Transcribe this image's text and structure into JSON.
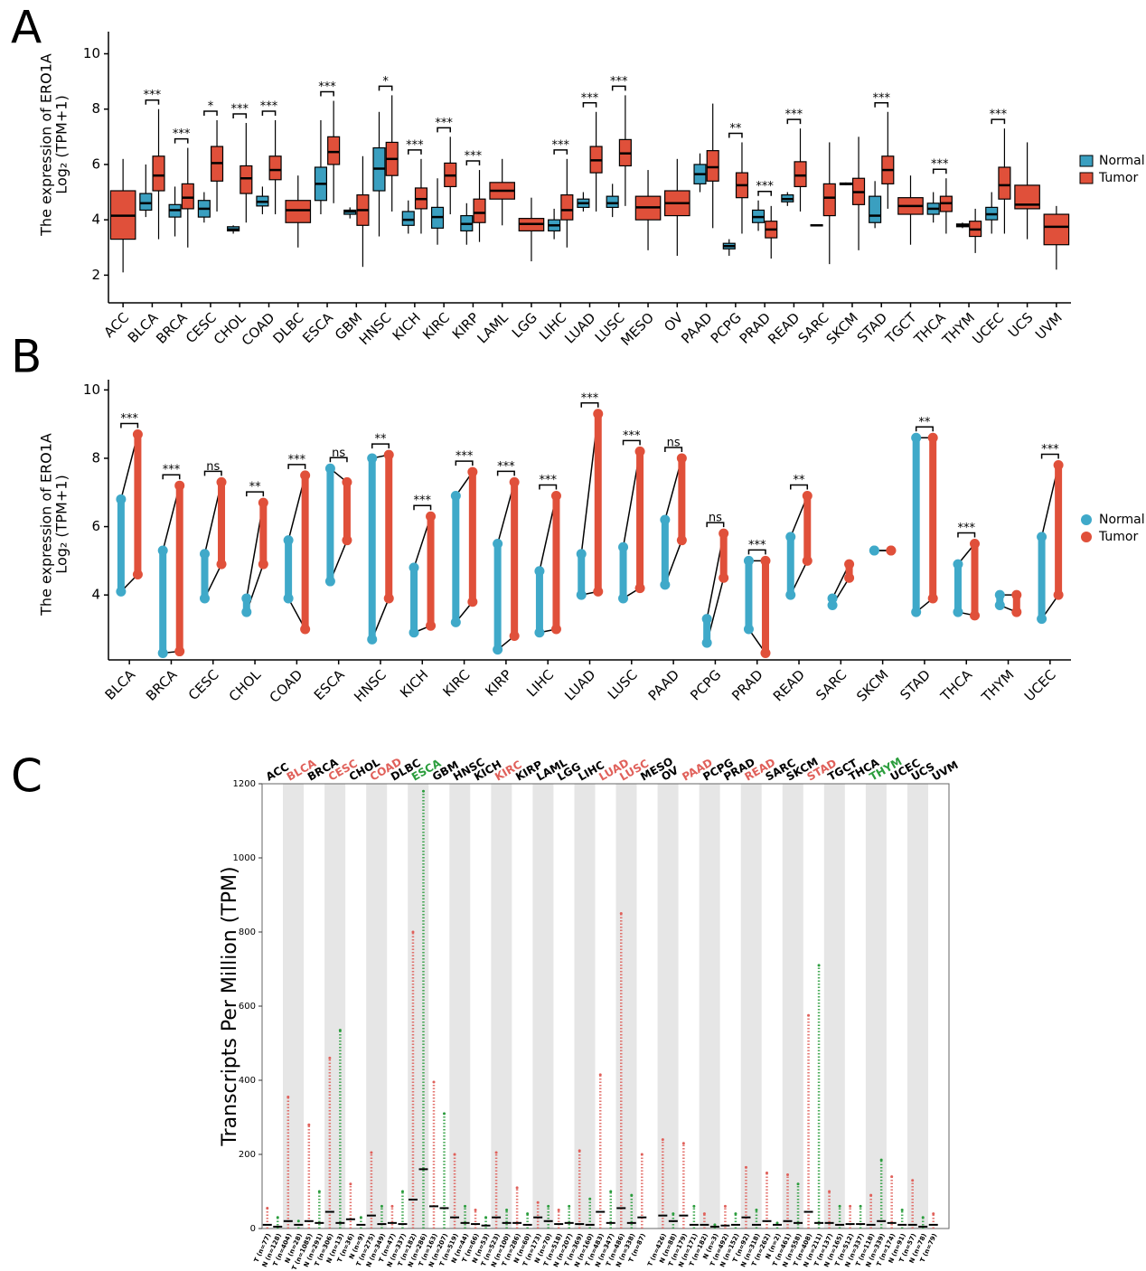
{
  "chart_data": [
    {
      "type": "boxplot",
      "panel_label": "A",
      "y_label": [
        "The expression of ERO1A",
        "Log₂ (TPM+1)"
      ],
      "categories": [
        "ACC",
        "BLCA",
        "BRCA",
        "CESC",
        "CHOL",
        "COAD",
        "DLBC",
        "ESCA",
        "GBM",
        "HNSC",
        "KICH",
        "KIRC",
        "KIRP",
        "LAML",
        "LGG",
        "LIHC",
        "LUAD",
        "LUSC",
        "MESO",
        "OV",
        "PAAD",
        "PCPG",
        "PRAD",
        "READ",
        "SARC",
        "SKCM",
        "STAD",
        "TGCT",
        "THCA",
        "THYM",
        "UCEC",
        "UCS",
        "UVM"
      ],
      "series": [
        {
          "name": "Normal",
          "color": "#3a9fc0",
          "boxes": [
            null,
            [
              4.1,
              4.35,
              4.6,
              4.95,
              6.0
            ],
            [
              3.4,
              4.1,
              4.35,
              4.55,
              5.2
            ],
            [
              3.9,
              4.1,
              4.4,
              4.7,
              5.0
            ],
            [
              3.5,
              3.6,
              3.65,
              3.75,
              3.8
            ],
            [
              4.2,
              4.5,
              4.65,
              4.85,
              5.2
            ],
            null,
            [
              4.2,
              4.7,
              5.3,
              5.9,
              7.6
            ],
            [
              4.05,
              4.2,
              4.3,
              4.35,
              4.45
            ],
            [
              3.4,
              5.05,
              5.85,
              6.6,
              7.9
            ],
            [
              3.5,
              3.8,
              4.0,
              4.3,
              4.7
            ],
            [
              3.1,
              3.7,
              4.1,
              4.45,
              5.5
            ],
            [
              3.1,
              3.6,
              3.85,
              4.15,
              4.6
            ],
            null,
            null,
            [
              3.3,
              3.6,
              3.8,
              4.0,
              4.4
            ],
            [
              4.3,
              4.45,
              4.6,
              4.75,
              5.0
            ],
            [
              4.1,
              4.45,
              4.6,
              4.85,
              5.3
            ],
            null,
            null,
            [
              5.0,
              5.3,
              5.65,
              6.0,
              6.4
            ],
            [
              2.7,
              2.95,
              3.05,
              3.15,
              3.3
            ],
            [
              3.6,
              3.9,
              4.1,
              4.35,
              4.7
            ],
            [
              4.5,
              4.65,
              4.75,
              4.9,
              5.0
            ],
            [
              3.78,
              3.78,
              3.8,
              3.82,
              3.82
            ],
            [
              5.25,
              5.27,
              5.3,
              5.33,
              5.35
            ],
            [
              3.7,
              3.9,
              4.15,
              4.85,
              5.4
            ],
            null,
            [
              3.9,
              4.2,
              4.4,
              4.6,
              5.0
            ],
            [
              3.7,
              3.75,
              3.8,
              3.85,
              3.9
            ],
            [
              3.5,
              4.0,
              4.2,
              4.45,
              5.0
            ],
            null,
            null
          ]
        },
        {
          "name": "Tumor",
          "color": "#e0503a",
          "boxes": [
            [
              2.1,
              3.3,
              4.15,
              5.05,
              6.2
            ],
            [
              3.3,
              5.05,
              5.6,
              6.3,
              8.0
            ],
            [
              3.0,
              4.4,
              4.8,
              5.3,
              6.6
            ],
            [
              4.3,
              5.4,
              6.05,
              6.65,
              7.6
            ],
            [
              3.9,
              4.95,
              5.5,
              5.95,
              7.5
            ],
            [
              4.2,
              5.45,
              5.8,
              6.3,
              7.6
            ],
            [
              3.0,
              3.9,
              4.35,
              4.7,
              5.6
            ],
            [
              4.6,
              6.0,
              6.45,
              7.0,
              8.3
            ],
            [
              2.3,
              3.8,
              4.35,
              4.9,
              6.3
            ],
            [
              4.3,
              5.6,
              6.2,
              6.8,
              8.5
            ],
            [
              3.5,
              4.4,
              4.75,
              5.15,
              6.2
            ],
            [
              4.2,
              5.2,
              5.6,
              6.05,
              7.0
            ],
            [
              3.2,
              3.9,
              4.25,
              4.75,
              5.8
            ],
            [
              3.8,
              4.75,
              5.05,
              5.35,
              6.2
            ],
            [
              2.5,
              3.6,
              3.85,
              4.05,
              4.8
            ],
            [
              3.0,
              4.0,
              4.35,
              4.9,
              6.2
            ],
            [
              4.3,
              5.7,
              6.15,
              6.65,
              7.9
            ],
            [
              4.5,
              5.95,
              6.4,
              6.9,
              8.5
            ],
            [
              2.9,
              4.0,
              4.45,
              4.85,
              5.8
            ],
            [
              2.7,
              4.15,
              4.6,
              5.05,
              6.2
            ],
            [
              3.7,
              5.4,
              5.9,
              6.5,
              8.2
            ],
            [
              3.5,
              4.8,
              5.25,
              5.7,
              6.8
            ],
            [
              2.6,
              3.35,
              3.65,
              3.95,
              4.5
            ],
            [
              4.3,
              5.2,
              5.6,
              6.1,
              7.3
            ],
            [
              2.4,
              4.15,
              4.8,
              5.3,
              6.8
            ],
            [
              2.9,
              4.55,
              5.0,
              5.5,
              7.0
            ],
            [
              4.4,
              5.3,
              5.8,
              6.3,
              7.9
            ],
            [
              3.1,
              4.2,
              4.5,
              4.8,
              5.6
            ],
            [
              3.5,
              4.3,
              4.6,
              4.85,
              5.5
            ],
            [
              2.8,
              3.4,
              3.65,
              3.95,
              4.4
            ],
            [
              3.5,
              4.75,
              5.25,
              5.9,
              7.3
            ],
            [
              3.3,
              4.4,
              4.55,
              5.25,
              6.8
            ],
            [
              2.2,
              3.1,
              3.75,
              4.2,
              4.5
            ]
          ]
        }
      ],
      "significance": [
        null,
        "***",
        "***",
        "*",
        "***",
        "***",
        null,
        "***",
        null,
        "*",
        "***",
        "***",
        "***",
        null,
        null,
        "***",
        "***",
        "***",
        null,
        null,
        null,
        "**",
        "***",
        "***",
        null,
        null,
        "***",
        null,
        "***",
        null,
        "***",
        null,
        null
      ],
      "ylim": [
        1.0,
        10.8
      ],
      "yticks": [
        2,
        4,
        6,
        8,
        10
      ],
      "legend": "right"
    },
    {
      "type": "paired",
      "panel_label": "B",
      "y_label": [
        "The expression of ERO1A",
        "Log₂ (TPM+1)"
      ],
      "categories": [
        "BLCA",
        "BRCA",
        "CESC",
        "CHOL",
        "COAD",
        "ESCA",
        "HNSC",
        "KICH",
        "KIRC",
        "KIRP",
        "LIHC",
        "LUAD",
        "LUSC",
        "PAAD",
        "PCPG",
        "PRAD",
        "READ",
        "SARC",
        "SKCM",
        "STAD",
        "THCA",
        "THYM",
        "UCEC"
      ],
      "series": [
        {
          "name": "Normal",
          "color": "#3fa9c9",
          "min": [
            4.1,
            2.3,
            3.9,
            3.5,
            3.9,
            4.4,
            2.7,
            2.9,
            3.2,
            2.4,
            2.9,
            4.0,
            3.9,
            4.3,
            2.6,
            3.0,
            4.0,
            3.7,
            5.3,
            3.5,
            3.5,
            3.7,
            3.3
          ],
          "max": [
            6.8,
            5.3,
            5.2,
            3.9,
            5.6,
            7.7,
            8.0,
            4.8,
            6.9,
            5.5,
            4.7,
            5.2,
            5.4,
            6.2,
            3.3,
            5.0,
            5.7,
            3.9,
            5.3,
            8.6,
            4.9,
            4.0,
            5.7
          ]
        },
        {
          "name": "Tumor",
          "color": "#e0503a",
          "min": [
            4.6,
            2.35,
            4.9,
            4.9,
            3.0,
            5.6,
            3.9,
            3.1,
            3.8,
            2.8,
            3.0,
            4.1,
            4.2,
            5.6,
            4.5,
            2.3,
            5.0,
            4.5,
            5.3,
            3.9,
            3.4,
            3.5,
            4.0
          ],
          "max": [
            8.7,
            7.2,
            7.3,
            6.7,
            7.5,
            7.3,
            8.1,
            6.3,
            7.6,
            7.3,
            6.9,
            9.3,
            8.2,
            8.0,
            5.8,
            5.0,
            6.9,
            4.9,
            5.3,
            8.6,
            5.5,
            4.0,
            7.8
          ]
        }
      ],
      "significance": [
        "***",
        "***",
        "ns",
        "**",
        "***",
        "ns",
        "**",
        "***",
        "***",
        "***",
        "***",
        "***",
        "***",
        "ns",
        "ns",
        "***",
        "**",
        null,
        null,
        "**",
        "***",
        null,
        "***"
      ],
      "ylim": [
        2.1,
        10.3
      ],
      "yticks": [
        4,
        6,
        8,
        10
      ],
      "legend": "right"
    },
    {
      "type": "strip",
      "panel_label": "C",
      "y_label": "Transcripts Per Million (TPM)",
      "categories": [
        "ACC",
        "BLCA",
        "BRCA",
        "CESC",
        "CHOL",
        "COAD",
        "DLBC",
        "ESCA",
        "GBM",
        "HNSC",
        "KICH",
        "KIRC",
        "KIRP",
        "LAML",
        "LGG",
        "LIHC",
        "LUAD",
        "LUSC",
        "MESO",
        "OV",
        "PAAD",
        "PCPG",
        "PRAD",
        "READ",
        "SARC",
        "SKCM",
        "STAD",
        "TGCT",
        "THCA",
        "THYM",
        "UCEC",
        "UCS",
        "UVM"
      ],
      "label_colors": [
        "#000000",
        "#e0605a",
        "#000000",
        "#e0605a",
        "#000000",
        "#e0605a",
        "#000000",
        "#2a9d3c",
        "#000000",
        "#000000",
        "#000000",
        "#e0605a",
        "#000000",
        "#000000",
        "#000000",
        "#000000",
        "#e0605a",
        "#e0605a",
        "#000000",
        "#000000",
        "#e0605a",
        "#000000",
        "#000000",
        "#e0605a",
        "#000000",
        "#000000",
        "#e0605a",
        "#000000",
        "#000000",
        "#2a9d3c",
        "#000000",
        "#000000",
        "#000000"
      ],
      "tumor": {
        "color": "#e0605a",
        "labels": [
          "T (n=77)",
          "T (n=404)",
          "T (n=1085)",
          "T (n=306)",
          "T (n=36)",
          "T (n=275)",
          "T (n=47)",
          "T (n=182)",
          "T (n=163)",
          "T (n=519)",
          "T (n=66)",
          "T (n=523)",
          "T (n=286)",
          "T (n=173)",
          "T (n=518)",
          "T (n=369)",
          "T (n=483)",
          "T (n=486)",
          "T (n=87)",
          "T (n=426)",
          "T (n=179)",
          "T (n=182)",
          "T (n=492)",
          "T (n=92)",
          "T (n=262)",
          "T (n=461)",
          "T (n=408)",
          "T (n=137)",
          "T (n=512)",
          "T (n=118)",
          "T (n=174)",
          "T (n=57)",
          "T (n=79)"
        ],
        "median": [
          10,
          20,
          20,
          45,
          25,
          35,
          15,
          78,
          60,
          30,
          12,
          30,
          15,
          30,
          12,
          12,
          45,
          55,
          30,
          35,
          35,
          10,
          8,
          30,
          20,
          20,
          45,
          15,
          12,
          10,
          15,
          10,
          10
        ],
        "max": [
          55,
          355,
          280,
          460,
          120,
          205,
          60,
          800,
          395,
          200,
          50,
          205,
          110,
          70,
          50,
          210,
          415,
          850,
          200,
          240,
          230,
          40,
          60,
          165,
          150,
          145,
          575,
          100,
          60,
          90,
          140,
          130,
          40
        ]
      },
      "normal": {
        "color": "#2a9d3c",
        "labels": [
          "N (n=128)",
          "N (n=28)",
          "N (n=291)",
          "N (n=13)",
          "N (n=9)",
          "N (n=349)",
          "N (n=337)",
          "N (n=286)",
          "N (n=207)",
          "N (n=44)",
          "N (n=53)",
          "N (n=100)",
          "N (n=60)",
          "N (n=70)",
          "N (n=207)",
          "N (n=160)",
          "N (n=347)",
          "N (n=338)",
          null,
          "N (n=88)",
          "N (n=171)",
          "N (n=3)",
          "N (n=152)",
          "N (n=318)",
          "N (n=2)",
          "N (n=558)",
          "N (n=211)",
          "N (n=165)",
          "N (n=337)",
          "N (n=339)",
          "N (n=91)",
          "N (n=78)",
          null
        ],
        "median": [
          5,
          10,
          15,
          15,
          10,
          12,
          12,
          160,
          55,
          15,
          8,
          15,
          10,
          20,
          15,
          10,
          15,
          15,
          null,
          20,
          10,
          5,
          10,
          10,
          10,
          15,
          15,
          10,
          12,
          20,
          10,
          5,
          null
        ],
        "max": [
          30,
          20,
          100,
          535,
          30,
          60,
          100,
          1180,
          310,
          60,
          30,
          50,
          40,
          60,
          60,
          80,
          100,
          90,
          null,
          40,
          60,
          10,
          40,
          50,
          15,
          120,
          710,
          60,
          60,
          185,
          50,
          30,
          null
        ]
      },
      "ylim": [
        0,
        1200
      ],
      "yticks": [
        0,
        200,
        400,
        600,
        800,
        1000,
        1200
      ]
    }
  ]
}
